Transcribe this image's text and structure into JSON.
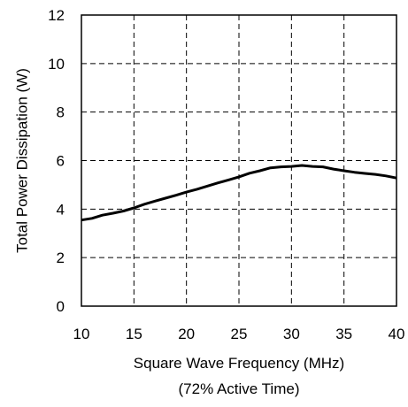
{
  "chart_data": {
    "type": "line",
    "title": "",
    "xlabel": "Square Wave Frequency (MHz)",
    "xlabel_sub": "(72% Active Time)",
    "ylabel": "Total Power Dissipation (W)",
    "xlim": [
      10,
      40
    ],
    "ylim": [
      0,
      12
    ],
    "x_ticks": [
      "10",
      "15",
      "20",
      "25",
      "30",
      "35",
      "40"
    ],
    "y_ticks": [
      "0",
      "2",
      "4",
      "6",
      "8",
      "10",
      "12"
    ],
    "grid": true,
    "legend": "none",
    "series": [
      {
        "color": "#000000",
        "x": [
          10,
          11,
          12,
          13,
          14,
          15,
          16,
          17,
          18,
          19,
          20,
          21,
          22,
          23,
          24,
          25,
          26,
          27,
          28,
          29,
          30,
          31,
          32,
          33,
          34,
          35,
          36,
          37,
          38,
          39,
          40
        ],
        "values": [
          3.55,
          3.62,
          3.75,
          3.83,
          3.92,
          4.05,
          4.2,
          4.33,
          4.45,
          4.57,
          4.7,
          4.82,
          4.95,
          5.08,
          5.2,
          5.33,
          5.48,
          5.58,
          5.7,
          5.74,
          5.76,
          5.8,
          5.76,
          5.74,
          5.65,
          5.58,
          5.52,
          5.47,
          5.43,
          5.37,
          5.28
        ]
      }
    ]
  }
}
